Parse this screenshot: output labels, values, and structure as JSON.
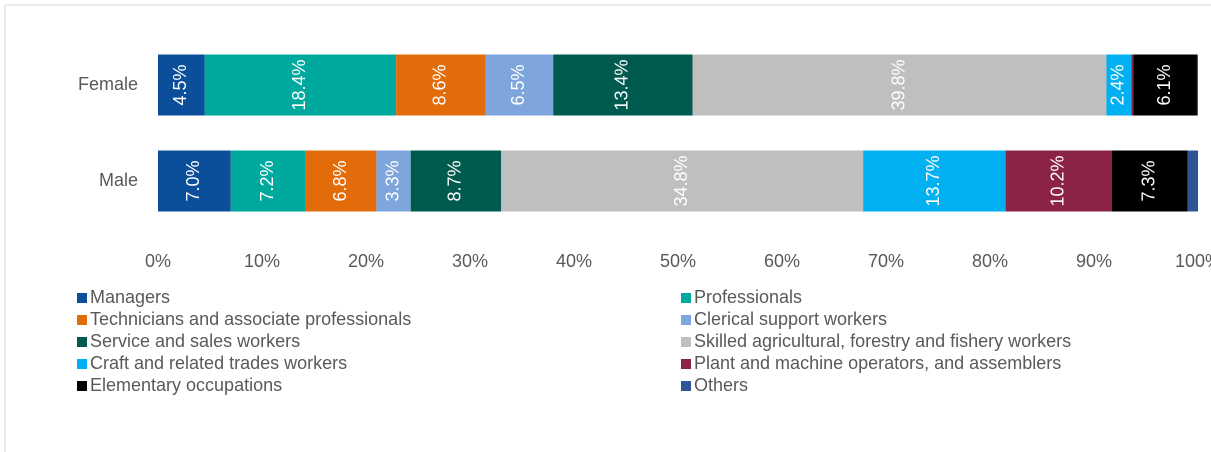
{
  "chart_data": {
    "type": "stacked-barh",
    "categories": [
      "Female",
      "Male"
    ],
    "xlim": [
      0,
      100
    ],
    "xticks": [
      {
        "value": 0,
        "label": "0%"
      },
      {
        "value": 10,
        "label": "10%"
      },
      {
        "value": 20,
        "label": "20%"
      },
      {
        "value": 30,
        "label": "30%"
      },
      {
        "value": 40,
        "label": "40%"
      },
      {
        "value": 50,
        "label": "50%"
      },
      {
        "value": 60,
        "label": "60%"
      },
      {
        "value": 70,
        "label": "70%"
      },
      {
        "value": 80,
        "label": "80%"
      },
      {
        "value": 90,
        "label": "90%"
      },
      {
        "value": 100,
        "label": "100%"
      }
    ],
    "legend": "bottom",
    "series": [
      {
        "name": "Managers",
        "color": "#0b4f9a",
        "values": [
          4.5,
          7.0
        ],
        "value_labels": [
          "4.5%",
          "7.0%"
        ]
      },
      {
        "name": "Professionals",
        "color": "#00a99d",
        "values": [
          18.4,
          7.2
        ],
        "value_labels": [
          "18.4%",
          "7.2%"
        ]
      },
      {
        "name": "Technicians and associate professionals",
        "color": "#e36c0a",
        "values": [
          8.6,
          6.8
        ],
        "value_labels": [
          "8.6%",
          "6.8%"
        ]
      },
      {
        "name": "Clerical support workers",
        "color": "#7ea6dc",
        "values": [
          6.5,
          3.3
        ],
        "value_labels": [
          "6.5%",
          "3.3%"
        ]
      },
      {
        "name": "Service and sales workers",
        "color": "#005a4e",
        "values": [
          13.4,
          8.7
        ],
        "value_labels": [
          "13.4%",
          "8.7%"
        ]
      },
      {
        "name": "Skilled agricultural, forestry and fishery workers",
        "color": "#bfbfbf",
        "values": [
          39.8,
          34.8
        ],
        "value_labels": [
          "39.8%",
          "34.8%"
        ]
      },
      {
        "name": "Craft and related trades workers",
        "color": "#00b0f0",
        "values": [
          2.4,
          13.7
        ],
        "value_labels": [
          "2.4%",
          "13.7%"
        ]
      },
      {
        "name": "Plant and machine operators, and assemblers",
        "color": "#8b2346",
        "values": [
          0.2,
          10.2
        ],
        "value_labels": [
          null,
          "10.2%"
        ]
      },
      {
        "name": "Elementary occupations",
        "color": "#000000",
        "values": [
          6.1,
          7.3
        ],
        "value_labels": [
          "6.1%",
          "7.3%"
        ]
      },
      {
        "name": "Others",
        "color": "#2f5597",
        "values": [
          0.1,
          1.0
        ],
        "value_labels": [
          null,
          null
        ]
      }
    ]
  }
}
